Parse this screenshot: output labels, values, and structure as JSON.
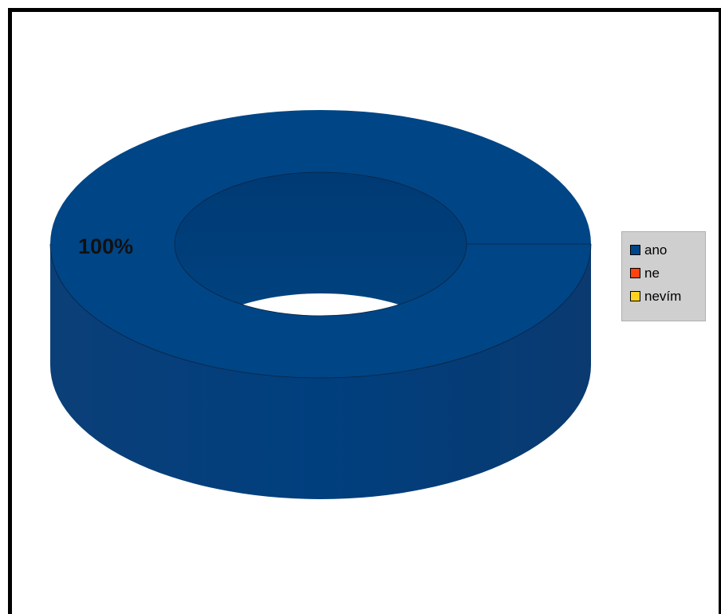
{
  "chart_data": {
    "type": "pie",
    "variant": "3d-donut",
    "categories": [
      "ano",
      "ne",
      "nevím"
    ],
    "values": [
      100,
      0,
      0
    ],
    "colors": [
      "#004586",
      "#ff420e",
      "#ffd320"
    ],
    "data_labels": [
      "100%"
    ],
    "legend": {
      "position": "right",
      "items": [
        {
          "label": "ano",
          "color": "#004586"
        },
        {
          "label": "ne",
          "color": "#ff420e"
        },
        {
          "label": "nevím",
          "color": "#ffd320"
        }
      ]
    }
  }
}
